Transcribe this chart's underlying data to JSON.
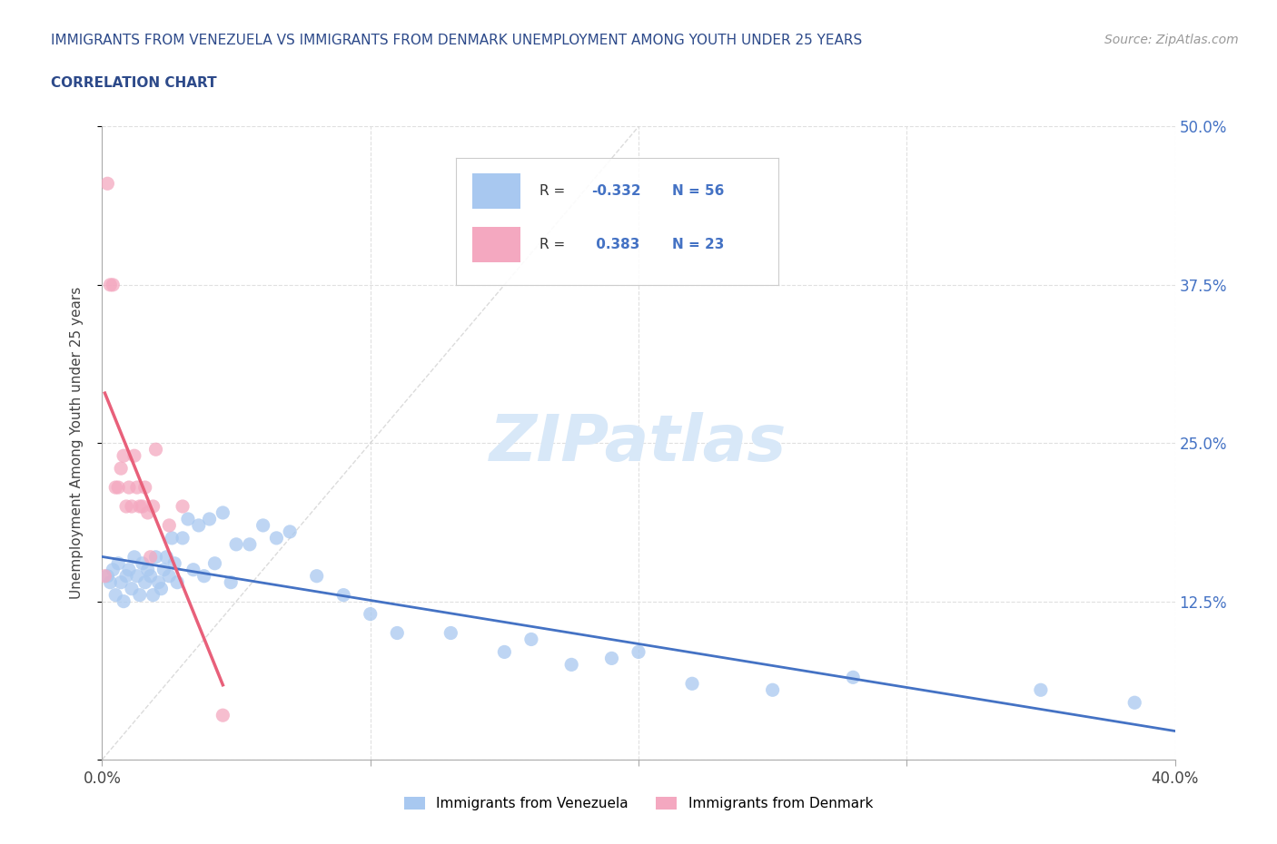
{
  "title_line1": "IMMIGRANTS FROM VENEZUELA VS IMMIGRANTS FROM DENMARK UNEMPLOYMENT AMONG YOUTH UNDER 25 YEARS",
  "title_line2": "CORRELATION CHART",
  "source": "Source: ZipAtlas.com",
  "ylabel": "Unemployment Among Youth under 25 years",
  "xlim": [
    0.0,
    0.4
  ],
  "ylim": [
    0.0,
    0.5
  ],
  "xticks": [
    0.0,
    0.1,
    0.2,
    0.3,
    0.4
  ],
  "yticks": [
    0.0,
    0.125,
    0.25,
    0.375,
    0.5
  ],
  "R_venezuela": -0.332,
  "N_venezuela": 56,
  "R_denmark": 0.383,
  "N_denmark": 23,
  "color_venezuela": "#a8c8f0",
  "color_denmark": "#f4a8c0",
  "color_trendline_venezuela": "#4472c4",
  "color_trendline_denmark": "#e8607a",
  "color_axis_labels": "#4472c4",
  "color_title": "#2d4a8a",
  "color_grid": "#e0e0e0",
  "color_diag": "#cccccc",
  "watermark_color": "#d8e8f8",
  "venezuela_x": [
    0.002,
    0.003,
    0.004,
    0.005,
    0.006,
    0.007,
    0.008,
    0.009,
    0.01,
    0.011,
    0.012,
    0.013,
    0.014,
    0.015,
    0.016,
    0.017,
    0.018,
    0.019,
    0.02,
    0.021,
    0.022,
    0.023,
    0.024,
    0.025,
    0.026,
    0.027,
    0.028,
    0.03,
    0.032,
    0.034,
    0.036,
    0.038,
    0.04,
    0.042,
    0.045,
    0.048,
    0.05,
    0.055,
    0.06,
    0.065,
    0.07,
    0.08,
    0.09,
    0.1,
    0.11,
    0.13,
    0.15,
    0.16,
    0.175,
    0.19,
    0.2,
    0.22,
    0.25,
    0.28,
    0.35,
    0.385
  ],
  "venezuela_y": [
    0.145,
    0.14,
    0.15,
    0.13,
    0.155,
    0.14,
    0.125,
    0.145,
    0.15,
    0.135,
    0.16,
    0.145,
    0.13,
    0.155,
    0.14,
    0.15,
    0.145,
    0.13,
    0.16,
    0.14,
    0.135,
    0.15,
    0.16,
    0.145,
    0.175,
    0.155,
    0.14,
    0.175,
    0.19,
    0.15,
    0.185,
    0.145,
    0.19,
    0.155,
    0.195,
    0.14,
    0.17,
    0.17,
    0.185,
    0.175,
    0.18,
    0.145,
    0.13,
    0.115,
    0.1,
    0.1,
    0.085,
    0.095,
    0.075,
    0.08,
    0.085,
    0.06,
    0.055,
    0.065,
    0.055,
    0.045
  ],
  "denmark_x": [
    0.001,
    0.002,
    0.003,
    0.004,
    0.005,
    0.006,
    0.007,
    0.008,
    0.009,
    0.01,
    0.011,
    0.012,
    0.013,
    0.014,
    0.015,
    0.016,
    0.017,
    0.018,
    0.019,
    0.02,
    0.025,
    0.03,
    0.045
  ],
  "denmark_y": [
    0.145,
    0.455,
    0.375,
    0.375,
    0.215,
    0.215,
    0.23,
    0.24,
    0.2,
    0.215,
    0.2,
    0.24,
    0.215,
    0.2,
    0.2,
    0.215,
    0.195,
    0.16,
    0.2,
    0.245,
    0.185,
    0.2,
    0.035
  ]
}
